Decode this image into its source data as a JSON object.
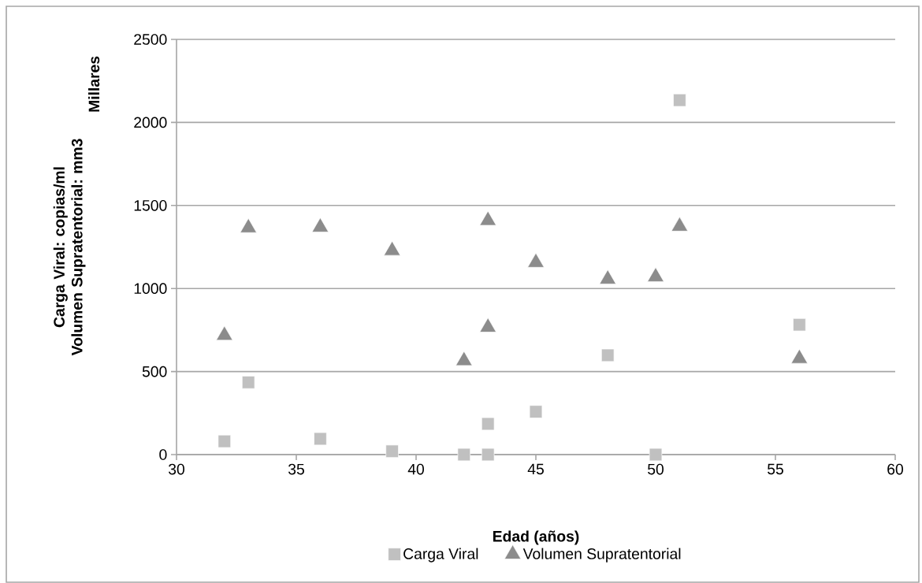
{
  "chart_data": {
    "type": "scatter",
    "xlabel": "Edad (años)",
    "ylabel": "Carga Viral: copias/ml Volumen Supratentorial: mm3",
    "annotations": [
      "Millares"
    ],
    "xlim": [
      30,
      60
    ],
    "xticks": [
      30,
      35,
      40,
      45,
      50,
      55,
      60
    ],
    "ylim": [
      0,
      2500
    ],
    "yticks": [
      0,
      500,
      1000,
      1500,
      2000,
      2500
    ],
    "grid": "y",
    "legend": "bottom",
    "series": [
      {
        "name": "Carga Viral",
        "color": "#c0c0c0",
        "marker": "square",
        "x": [
          32,
          33,
          36,
          39,
          42,
          43,
          43,
          45,
          48,
          50,
          51,
          56
        ],
        "values": [
          80,
          435,
          95,
          20,
          0,
          0,
          185,
          258,
          598,
          0,
          2134,
          782
        ]
      },
      {
        "name": "Volumen Supratentorial",
        "color": "#8c8c8c",
        "marker": "triangle",
        "x": [
          32,
          33,
          36,
          39,
          42,
          43,
          43,
          45,
          48,
          50,
          51,
          56
        ],
        "values": [
          717,
          1365,
          1369,
          1228,
          565,
          766,
          1409,
          1156,
          1056,
          1070,
          1374,
          578
        ]
      }
    ]
  }
}
